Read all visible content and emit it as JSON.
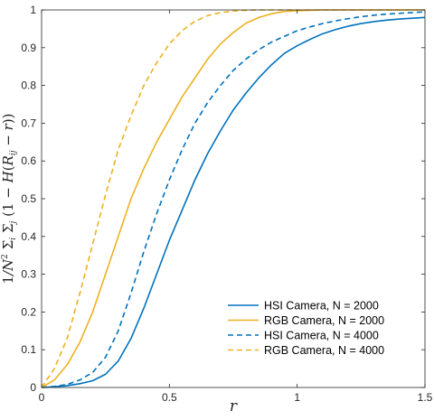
{
  "chart_data": {
    "type": "line",
    "title": "",
    "xlabel": "r",
    "ylabel": "1/N² Σi Σj (1 − H(Rij − r))",
    "xlim": [
      0,
      1.5
    ],
    "ylim": [
      0,
      1
    ],
    "xticks": [
      "0",
      "0.5",
      "1",
      "1.5"
    ],
    "yticks": [
      "0",
      "0.1",
      "0.2",
      "0.3",
      "0.4",
      "0.5",
      "0.6",
      "0.7",
      "0.8",
      "0.9",
      "1"
    ],
    "grid": false,
    "legend_position": "bottom-right",
    "series": [
      {
        "name": "HSI Camera,   N = 2000",
        "color": "#0072BD",
        "dash": "solid",
        "x": [
          0,
          0.05,
          0.1,
          0.15,
          0.2,
          0.25,
          0.3,
          0.35,
          0.4,
          0.45,
          0.5,
          0.55,
          0.6,
          0.65,
          0.7,
          0.75,
          0.8,
          0.85,
          0.9,
          0.95,
          1.0,
          1.05,
          1.1,
          1.15,
          1.2,
          1.25,
          1.3,
          1.35,
          1.4,
          1.45,
          1.5
        ],
        "y": [
          0,
          0.002,
          0.005,
          0.01,
          0.018,
          0.035,
          0.07,
          0.13,
          0.21,
          0.3,
          0.39,
          0.47,
          0.55,
          0.62,
          0.68,
          0.735,
          0.78,
          0.82,
          0.855,
          0.885,
          0.905,
          0.922,
          0.937,
          0.948,
          0.957,
          0.964,
          0.969,
          0.973,
          0.976,
          0.978,
          0.98
        ]
      },
      {
        "name": "RGB Camera,  N = 2000",
        "color": "#EDB120",
        "dash": "solid",
        "x": [
          0,
          0.05,
          0.1,
          0.15,
          0.2,
          0.25,
          0.3,
          0.35,
          0.4,
          0.45,
          0.5,
          0.55,
          0.6,
          0.65,
          0.7,
          0.75,
          0.8,
          0.85,
          0.9,
          0.95,
          1.0,
          1.05,
          1.1,
          1.2,
          1.3,
          1.4,
          1.5
        ],
        "y": [
          0,
          0.02,
          0.06,
          0.12,
          0.2,
          0.3,
          0.4,
          0.5,
          0.58,
          0.65,
          0.71,
          0.77,
          0.82,
          0.87,
          0.91,
          0.94,
          0.965,
          0.98,
          0.99,
          0.996,
          0.998,
          0.999,
          1.0,
          1.0,
          1.0,
          1.0,
          1.0
        ]
      },
      {
        "name": "HSI Camera,   N = 4000",
        "color": "#0072BD",
        "dash": "dashed",
        "x": [
          0,
          0.05,
          0.1,
          0.15,
          0.2,
          0.25,
          0.3,
          0.35,
          0.4,
          0.45,
          0.5,
          0.55,
          0.6,
          0.65,
          0.7,
          0.75,
          0.8,
          0.85,
          0.9,
          0.95,
          1.0,
          1.05,
          1.1,
          1.15,
          1.2,
          1.25,
          1.3,
          1.35,
          1.4,
          1.45,
          1.5
        ],
        "y": [
          0,
          0.003,
          0.008,
          0.02,
          0.04,
          0.08,
          0.15,
          0.25,
          0.36,
          0.46,
          0.55,
          0.63,
          0.7,
          0.755,
          0.8,
          0.84,
          0.87,
          0.895,
          0.915,
          0.93,
          0.945,
          0.955,
          0.964,
          0.971,
          0.977,
          0.982,
          0.986,
          0.989,
          0.991,
          0.993,
          0.995
        ]
      },
      {
        "name": "RGB Camera,  N = 4000",
        "color": "#EDB120",
        "dash": "dashed",
        "x": [
          0,
          0.05,
          0.1,
          0.15,
          0.2,
          0.25,
          0.3,
          0.35,
          0.4,
          0.45,
          0.5,
          0.55,
          0.6,
          0.65,
          0.7,
          0.75,
          0.8,
          0.85,
          0.9,
          0.95,
          1.0,
          1.1,
          1.2,
          1.3,
          1.4,
          1.5
        ],
        "y": [
          0,
          0.05,
          0.13,
          0.25,
          0.38,
          0.51,
          0.63,
          0.72,
          0.8,
          0.86,
          0.91,
          0.945,
          0.97,
          0.985,
          0.993,
          0.997,
          0.999,
          1.0,
          1.0,
          1.0,
          1.0,
          1.0,
          1.0,
          1.0,
          1.0,
          1.0
        ]
      }
    ]
  }
}
